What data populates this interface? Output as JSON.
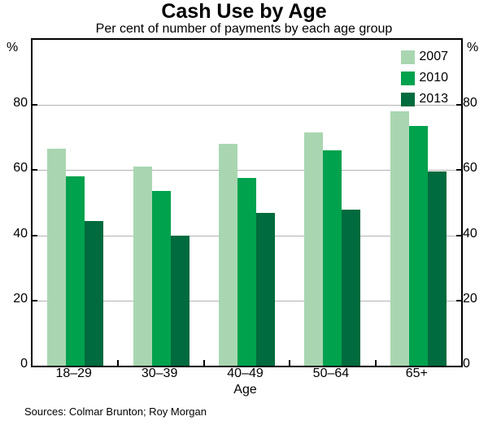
{
  "title": "Cash Use by Age",
  "subtitle": "Per cent of number of payments by each age group",
  "y_unit_left": "%",
  "y_unit_right": "%",
  "xlabel": "Age",
  "source": "Sources: Colmar Brunton; Roy Morgan",
  "chart_data": {
    "type": "bar",
    "title": "Cash Use by Age",
    "subtitle": "Per cent of number of payments by each age group",
    "categories": [
      "18–29",
      "30–39",
      "40–49",
      "50–64",
      "65+"
    ],
    "series": [
      {
        "name": "2007",
        "color": "#a9d6b1",
        "values": [
          66.5,
          61,
          68,
          71.5,
          78
        ]
      },
      {
        "name": "2010",
        "color": "#00a24e",
        "values": [
          58,
          53.5,
          57.5,
          66,
          73.5
        ]
      },
      {
        "name": "2013",
        "color": "#006b3e",
        "values": [
          44.5,
          40,
          47,
          48,
          59.5
        ]
      }
    ],
    "xlabel": "Age",
    "ylabel": "%",
    "ylim": [
      0,
      100
    ],
    "yticks": [
      0,
      20,
      40,
      60,
      80
    ],
    "grid": true,
    "legend_position": "top-right"
  }
}
